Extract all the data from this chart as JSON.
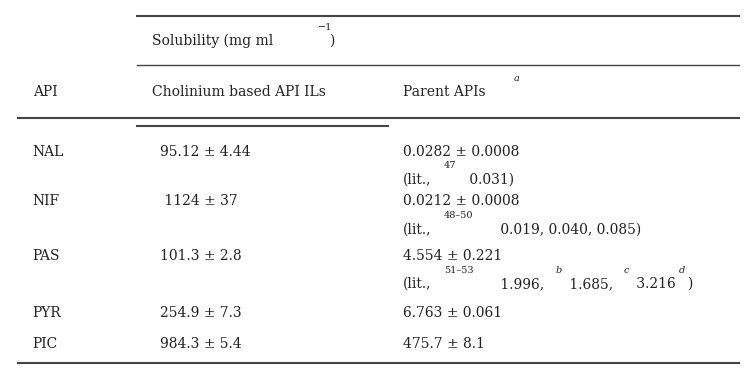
{
  "col1_header": "API",
  "col2_header": "Cholinium based API ILs",
  "col3_header": "Parent APIs",
  "col3_header_sup": "a",
  "solubility_label": "Solubility (mg ml",
  "solubility_sup": "−1",
  "solubility_close": ")",
  "rows": [
    {
      "api": "NAL",
      "il_value": "95.12 ± 4.44",
      "parent_line1": "0.0282 ± 0.0008",
      "parent_line2": "(lit.,",
      "parent_sup2": "47",
      "parent_rest2": " 0.031)"
    },
    {
      "api": "NIF",
      "il_value": " 1124 ± 37",
      "parent_line1": "0.0212 ± 0.0008",
      "parent_line2": "(lit.,",
      "parent_sup2": "48–50",
      "parent_rest2": " 0.019, 0.040, 0.085)"
    },
    {
      "api": "PAS",
      "il_value": "101.3 ± 2.8",
      "parent_line1": "4.554 ± 0.221",
      "parent_line2": "(lit.,",
      "parent_sup2": "51–53",
      "parent_rest2_parts": [
        {
          "text": " 1.996,",
          "sup": ""
        },
        {
          "text": " 1.685,",
          "sup": "b"
        },
        {
          "text": " 3.216",
          "sup": "c"
        },
        {
          "text": ")",
          "sup": "d"
        }
      ]
    },
    {
      "api": "PYR",
      "il_value": "254.9 ± 7.3",
      "parent_line1": "6.763 ± 0.061",
      "parent_line2": null,
      "parent_sup2": null,
      "parent_rest2": null
    },
    {
      "api": "PIC",
      "il_value": "984.3 ± 5.4",
      "parent_line1": "475.7 ± 8.1",
      "parent_line2": null,
      "parent_sup2": null,
      "parent_rest2": null
    }
  ],
  "bg_color": "#ffffff",
  "text_color": "#222222",
  "line_color": "#444444",
  "font_size": 10.0,
  "small_font_size": 7.0
}
